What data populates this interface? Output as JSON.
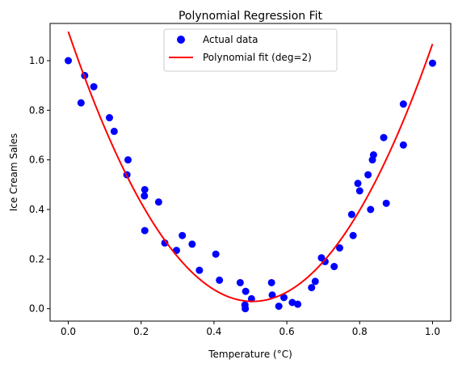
{
  "chart_data": {
    "type": "scatter",
    "title": "Polynomial Regression Fit",
    "xlabel": "Temperature (°C)",
    "ylabel": "Ice Cream Sales",
    "xlim": [
      -0.05,
      1.05
    ],
    "ylim": [
      -0.05,
      1.15
    ],
    "xticks": [
      "0.0",
      "0.2",
      "0.4",
      "0.6",
      "0.8",
      "1.0"
    ],
    "yticks": [
      "0.0",
      "0.2",
      "0.4",
      "0.6",
      "0.8",
      "1.0"
    ],
    "grid": false,
    "legend_position": "top-center",
    "series": [
      {
        "name": "Actual data",
        "kind": "scatter",
        "color": "#0000ff",
        "points": [
          [
            0.0,
            1.0
          ],
          [
            0.035,
            0.83
          ],
          [
            0.045,
            0.94
          ],
          [
            0.07,
            0.895
          ],
          [
            0.113,
            0.77
          ],
          [
            0.126,
            0.715
          ],
          [
            0.161,
            0.54
          ],
          [
            0.164,
            0.6
          ],
          [
            0.209,
            0.455
          ],
          [
            0.21,
            0.48
          ],
          [
            0.21,
            0.315
          ],
          [
            0.248,
            0.43
          ],
          [
            0.265,
            0.265
          ],
          [
            0.297,
            0.235
          ],
          [
            0.313,
            0.295
          ],
          [
            0.34,
            0.26
          ],
          [
            0.36,
            0.155
          ],
          [
            0.405,
            0.22
          ],
          [
            0.415,
            0.115
          ],
          [
            0.472,
            0.105
          ],
          [
            0.485,
            0.015
          ],
          [
            0.486,
            0.0
          ],
          [
            0.487,
            0.07
          ],
          [
            0.503,
            0.04
          ],
          [
            0.558,
            0.105
          ],
          [
            0.56,
            0.055
          ],
          [
            0.578,
            0.01
          ],
          [
            0.592,
            0.045
          ],
          [
            0.615,
            0.025
          ],
          [
            0.63,
            0.018
          ],
          [
            0.668,
            0.085
          ],
          [
            0.678,
            0.11
          ],
          [
            0.695,
            0.205
          ],
          [
            0.705,
            0.19
          ],
          [
            0.73,
            0.17
          ],
          [
            0.745,
            0.245
          ],
          [
            0.778,
            0.38
          ],
          [
            0.782,
            0.295
          ],
          [
            0.795,
            0.505
          ],
          [
            0.8,
            0.475
          ],
          [
            0.823,
            0.54
          ],
          [
            0.83,
            0.4
          ],
          [
            0.835,
            0.6
          ],
          [
            0.838,
            0.62
          ],
          [
            0.866,
            0.69
          ],
          [
            0.873,
            0.425
          ],
          [
            0.92,
            0.825
          ],
          [
            0.92,
            0.66
          ],
          [
            1.0,
            0.99
          ]
        ]
      },
      {
        "name": "Polynomial fit (deg=2)",
        "kind": "line",
        "color": "#ff0000",
        "degree": 2,
        "coefficients": {
          "a": 4.25,
          "b": -4.3,
          "c": 1.117
        },
        "x_range": [
          0.0,
          1.0
        ]
      }
    ]
  }
}
